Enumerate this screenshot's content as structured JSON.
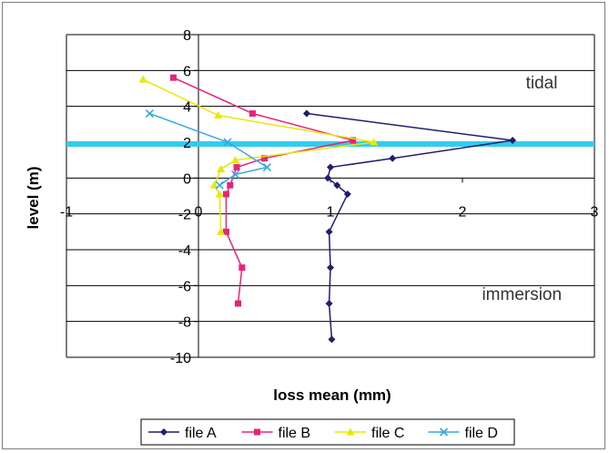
{
  "chart_data": {
    "type": "line",
    "title": "",
    "xlabel": "loss mean (mm)",
    "ylabel": "level (m)",
    "xlim": [
      -1,
      3
    ],
    "ylim": [
      -10,
      8
    ],
    "x_ticks": [
      "-1",
      "0",
      "1",
      "2",
      "3"
    ],
    "y_ticks": [
      "8",
      "6",
      "4",
      "2",
      "0",
      "-2",
      "-4",
      "-6",
      "-8",
      "-10"
    ],
    "grid": "horizontal",
    "legend_position": "bottom",
    "reference_line": {
      "y": 1.9,
      "color": "#33ccee"
    },
    "annotations": [
      {
        "text": "tidal",
        "x": 2.6,
        "y": 5
      },
      {
        "text": "immersion",
        "x": 2.45,
        "y": -6.8
      }
    ],
    "series": [
      {
        "name": "file A",
        "color": "#1f1f6e",
        "marker": "diamond",
        "points": [
          [
            0.82,
            3.6
          ],
          [
            2.38,
            2.1
          ],
          [
            1.47,
            1.1
          ],
          [
            1.0,
            0.6
          ],
          [
            0.98,
            0.0
          ],
          [
            1.05,
            -0.4
          ],
          [
            1.13,
            -0.9
          ],
          [
            0.99,
            -3.0
          ],
          [
            1.0,
            -5.0
          ],
          [
            0.99,
            -7.0
          ],
          [
            1.01,
            -9.0
          ]
        ]
      },
      {
        "name": "file B",
        "color": "#e8237a",
        "marker": "square",
        "points": [
          [
            -0.19,
            5.6
          ],
          [
            0.41,
            3.6
          ],
          [
            1.17,
            2.1
          ],
          [
            0.5,
            1.1
          ],
          [
            0.29,
            0.6
          ],
          [
            0.24,
            -0.4
          ],
          [
            0.21,
            -0.9
          ],
          [
            0.21,
            -3.0
          ],
          [
            0.33,
            -5.0
          ],
          [
            0.3,
            -7.0
          ]
        ]
      },
      {
        "name": "file C",
        "color": "#e8e800",
        "marker": "triangle",
        "points": [
          [
            -0.42,
            5.5
          ],
          [
            0.15,
            3.5
          ],
          [
            1.33,
            2.0
          ],
          [
            0.28,
            1.0
          ],
          [
            0.17,
            0.5
          ],
          [
            0.12,
            -0.4
          ],
          [
            0.16,
            -0.9
          ],
          [
            0.17,
            -3.0
          ]
        ]
      },
      {
        "name": "file D",
        "color": "#33aadd",
        "marker": "x",
        "points": [
          [
            -0.37,
            3.6
          ],
          [
            0.22,
            2.0
          ],
          [
            0.52,
            0.6
          ],
          [
            0.28,
            0.2
          ],
          [
            0.16,
            -0.4
          ]
        ]
      }
    ]
  }
}
